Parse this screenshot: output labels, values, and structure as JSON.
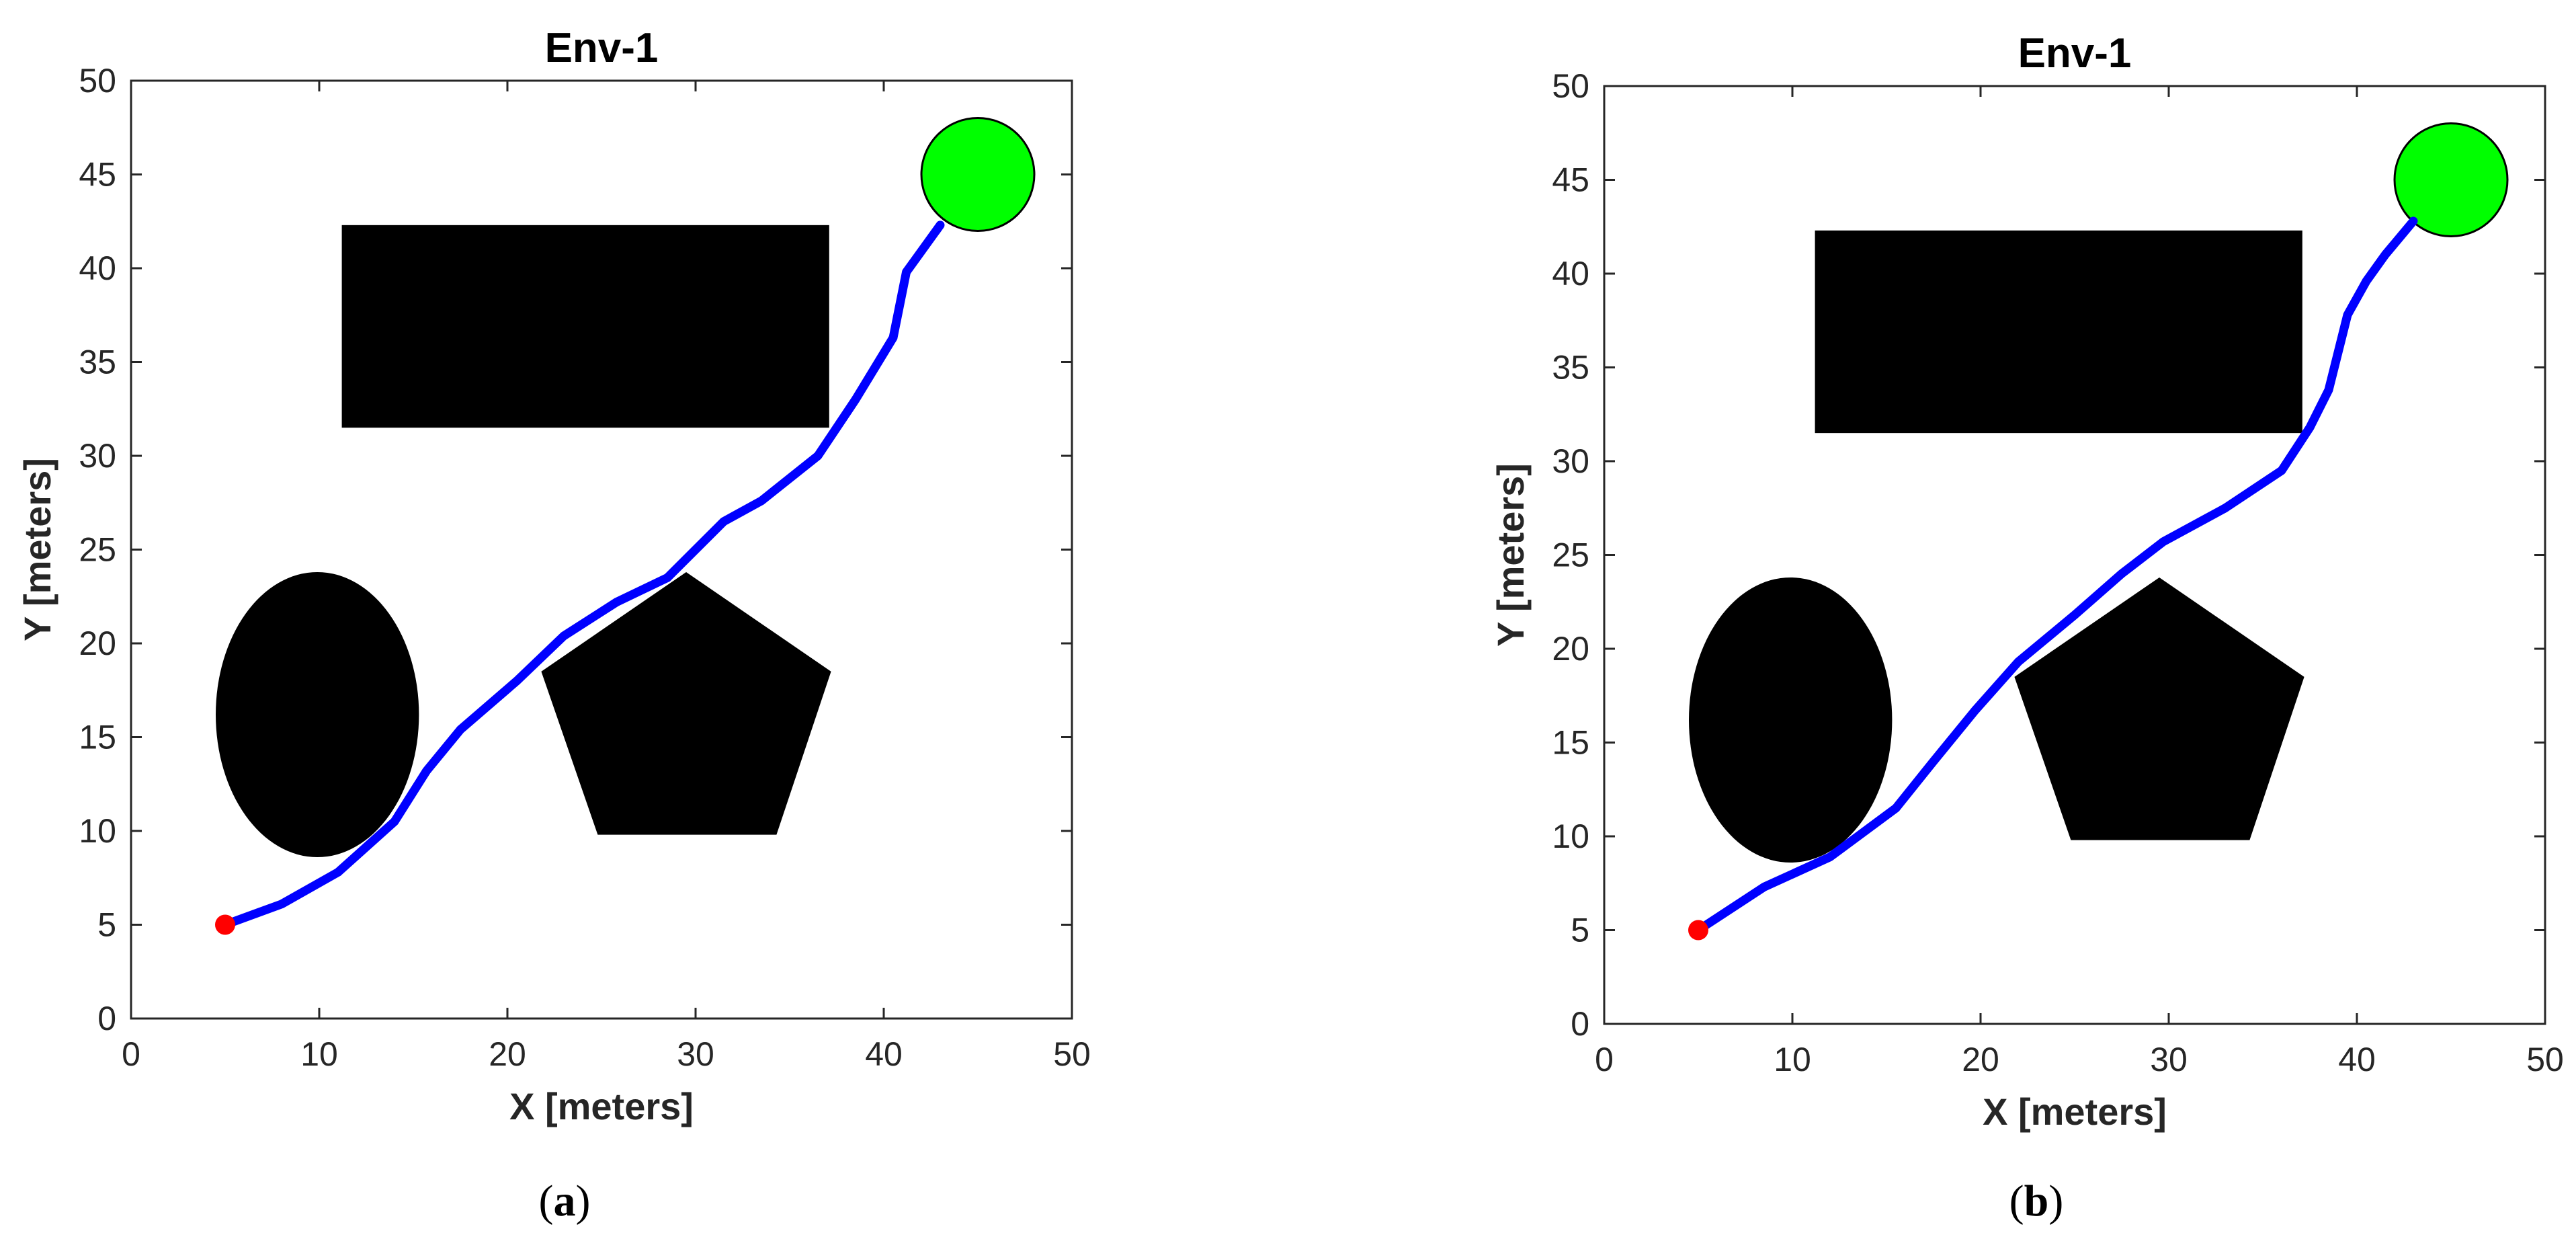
{
  "chart_data": [
    {
      "type": "scatter",
      "title": "Env-1",
      "xlabel": "X [meters]",
      "ylabel": "Y [meters]",
      "xlim": [
        0,
        50
      ],
      "ylim": [
        0,
        50
      ],
      "xticks": [
        0,
        10,
        20,
        30,
        40,
        50
      ],
      "yticks": [
        0,
        5,
        10,
        15,
        20,
        25,
        30,
        35,
        40,
        45,
        50
      ],
      "caption": "a",
      "obstacles": {
        "rectangle": {
          "x": [
            11.2,
            37.1
          ],
          "y": [
            31.5,
            42.3
          ],
          "color": "#000000"
        },
        "ellipse": {
          "center": [
            9.9,
            16.2
          ],
          "radius_x": 5.4,
          "radius_y": 7.6,
          "color": "#000000"
        },
        "pentagon": {
          "vertices": [
            [
              29.5,
              23.8
            ],
            [
              37.2,
              18.5
            ],
            [
              34.3,
              9.8
            ],
            [
              24.8,
              9.8
            ],
            [
              21.8,
              18.5
            ]
          ],
          "color": "#000000"
        }
      },
      "start": {
        "x": 5,
        "y": 5,
        "color": "#ff0000"
      },
      "goal": {
        "x": 45,
        "y": 45,
        "radius": 3,
        "color": "#00ff00"
      },
      "path": {
        "color": "#0000ff",
        "x": [
          5,
          8,
          11,
          14,
          15.7,
          17.5,
          20.5,
          23,
          25.8,
          28.5,
          30,
          31.5,
          33.5,
          36.5,
          38.5,
          40.5,
          41.2,
          43
        ],
        "y": [
          5,
          6.1,
          7.8,
          10.5,
          13.2,
          15.4,
          18,
          20.4,
          22.2,
          23.5,
          25,
          26.5,
          27.6,
          30,
          33,
          36.3,
          39.8,
          42.3
        ]
      }
    },
    {
      "type": "scatter",
      "title": "Env-1",
      "xlabel": "X [meters]",
      "ylabel": "Y [meters]",
      "xlim": [
        0,
        50
      ],
      "ylim": [
        0,
        50
      ],
      "xticks": [
        0,
        10,
        20,
        30,
        40,
        50
      ],
      "yticks": [
        0,
        5,
        10,
        15,
        20,
        25,
        30,
        35,
        40,
        45,
        50
      ],
      "caption": "b",
      "obstacles": {
        "rectangle": {
          "x": [
            11.2,
            37.1
          ],
          "y": [
            31.5,
            42.3
          ],
          "color": "#000000"
        },
        "ellipse": {
          "center": [
            9.9,
            16.2
          ],
          "radius_x": 5.4,
          "radius_y": 7.6,
          "color": "#000000"
        },
        "pentagon": {
          "vertices": [
            [
              29.5,
              23.8
            ],
            [
              37.2,
              18.5
            ],
            [
              34.3,
              9.8
            ],
            [
              24.8,
              9.8
            ],
            [
              21.8,
              18.5
            ]
          ],
          "color": "#000000"
        }
      },
      "start": {
        "x": 5,
        "y": 5,
        "color": "#ff0000"
      },
      "goal": {
        "x": 45,
        "y": 45,
        "radius": 3,
        "color": "#00ff00"
      },
      "path": {
        "color": "#0000ff",
        "x": [
          5,
          8.5,
          12,
          15.5,
          17.5,
          19.7,
          22,
          25,
          27.5,
          29.7,
          33,
          36,
          37.5,
          38.5,
          39.5,
          40.5,
          41.5,
          43
        ],
        "y": [
          5,
          7.3,
          8.9,
          11.5,
          14,
          16.7,
          19.3,
          21.8,
          24,
          25.7,
          27.5,
          29.5,
          31.8,
          33.8,
          37.8,
          39.6,
          41,
          42.8
        ]
      }
    }
  ]
}
